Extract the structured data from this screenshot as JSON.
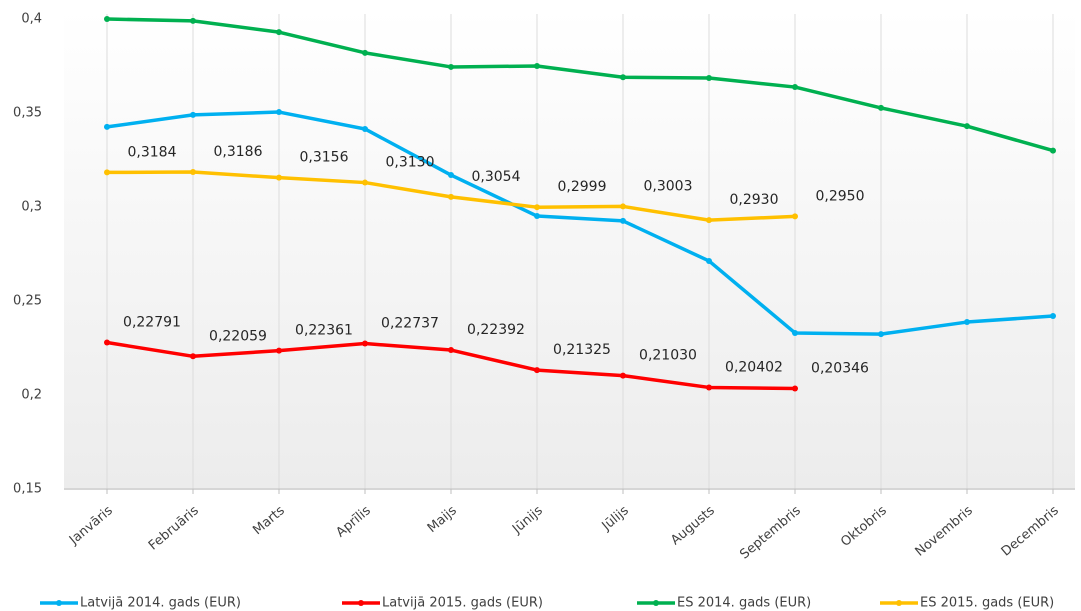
{
  "chart_data": {
    "type": "line",
    "categories": [
      "Janvāris",
      "Februāris",
      "Marts",
      "Aprīlis",
      "Maijs",
      "Jūnijs",
      "Jūlijs",
      "Augusts",
      "Septembris",
      "Oktobris",
      "Novembris",
      "Decembris"
    ],
    "ylim": [
      0.15,
      0.4
    ],
    "yticks": [
      {
        "value": 0.15,
        "label": "0,15"
      },
      {
        "value": 0.2,
        "label": "0,2"
      },
      {
        "value": 0.25,
        "label": "0,25"
      },
      {
        "value": 0.3,
        "label": "0,3"
      },
      {
        "value": 0.35,
        "label": "0,35"
      },
      {
        "value": 0.4,
        "label": "0,4"
      }
    ],
    "legend": "bottom",
    "series": [
      {
        "name": "Latvijā 2014. gads (EUR)",
        "color": "#00b0f0",
        "values": [
          0.3426,
          0.349,
          0.3505,
          0.3415,
          0.317,
          0.2952,
          0.2926,
          0.2713,
          0.233,
          0.2324,
          0.2388,
          0.242
        ]
      },
      {
        "name": "Latvijā 2015. gads (EUR)",
        "color": "#ff0000",
        "values": [
          0.22791,
          0.22059,
          0.22361,
          0.22737,
          0.22392,
          0.21325,
          0.2103,
          0.20402,
          0.20346,
          null,
          null,
          null
        ],
        "value_labels": [
          "0,22791",
          "0,22059",
          "0,22361",
          "0,22737",
          "0,22392",
          "0,21325",
          "0,21030",
          "0,20402",
          "0,20346",
          null,
          null,
          null
        ]
      },
      {
        "name": "ES 2014. gads (EUR)",
        "color": "#00b050",
        "values": [
          0.4,
          0.399,
          0.393,
          0.382,
          0.3745,
          0.375,
          0.369,
          0.3686,
          0.3638,
          0.3527,
          0.343,
          0.33
        ]
      },
      {
        "name": "ES 2015. gads (EUR)",
        "color": "#ffc000",
        "values": [
          0.3184,
          0.3186,
          0.3156,
          0.313,
          0.3054,
          0.2999,
          0.3003,
          0.293,
          0.295,
          null,
          null,
          null
        ],
        "value_labels": [
          "0,3184",
          "0,3186",
          "0,3156",
          "0,3130",
          "0,3054",
          "0,2999",
          "0,3003",
          "0,2930",
          "0,2950",
          null,
          null,
          null
        ]
      }
    ]
  }
}
